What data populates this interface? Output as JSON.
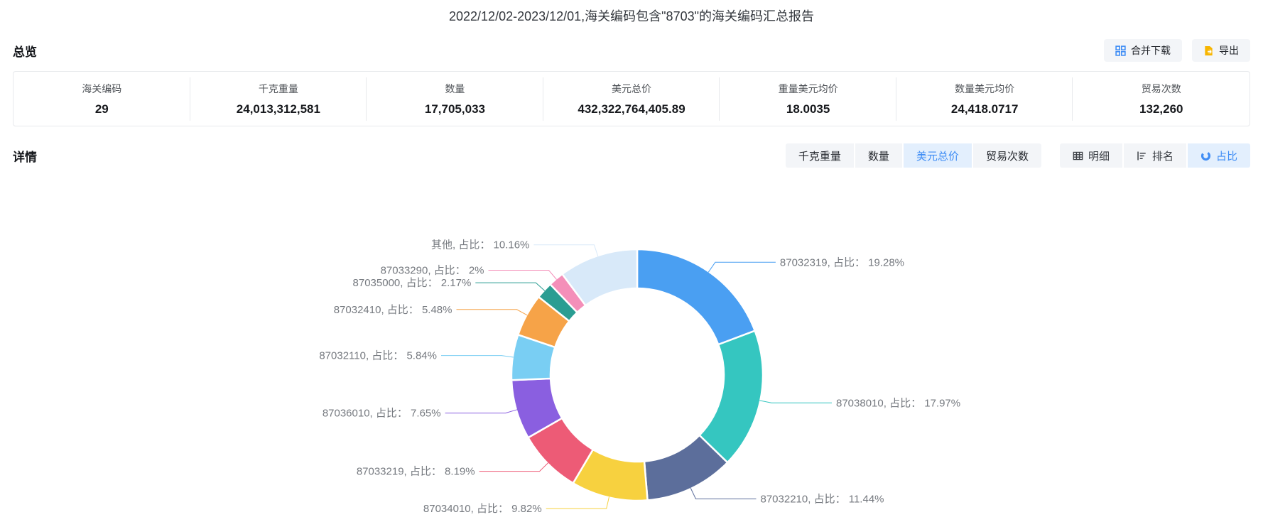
{
  "title": "2022/12/02-2023/12/01,海关编码包含\"8703\"的海关编码汇总报告",
  "overview": {
    "heading": "总览",
    "actions": [
      {
        "label": "合并下载",
        "icon": "merge-download-icon"
      },
      {
        "label": "导出",
        "icon": "export-icon"
      }
    ],
    "stats": [
      {
        "label": "海关编码",
        "value": "29"
      },
      {
        "label": "千克重量",
        "value": "24,013,312,581"
      },
      {
        "label": "数量",
        "value": "17,705,033"
      },
      {
        "label": "美元总价",
        "value": "432,322,764,405.89"
      },
      {
        "label": "重量美元均价",
        "value": "18.0035"
      },
      {
        "label": "数量美元均价",
        "value": "24,418.0717"
      },
      {
        "label": "贸易次数",
        "value": "132,260"
      }
    ]
  },
  "detail": {
    "heading": "详情",
    "metric_tabs": [
      {
        "label": "千克重量",
        "active": false
      },
      {
        "label": "数量",
        "active": false
      },
      {
        "label": "美元总价",
        "active": true
      },
      {
        "label": "贸易次数",
        "active": false
      }
    ],
    "view_tabs": [
      {
        "label": "明细",
        "icon": "table-icon",
        "active": false
      },
      {
        "label": "排名",
        "icon": "rank-icon",
        "active": false
      },
      {
        "label": "占比",
        "icon": "pie-icon",
        "active": true
      }
    ]
  },
  "colors": {
    "accent_blue": "#3f8df5",
    "active_tab_bg": "#e3effd",
    "tab_bg": "#f3f5f8",
    "export_icon_orange": "#f7b500",
    "chart_label_gray": "#75797f"
  },
  "chart_data": {
    "type": "pie",
    "subtype": "donut",
    "start_angle": "top",
    "direction": "clockwise",
    "labels": "outside-with-leader-lines",
    "label_template": "{name}, 占比： {percent_display}",
    "slices": [
      {
        "name": "87032319",
        "percent": 19.28,
        "percent_display": "19.28%",
        "color": "#4a9ff2"
      },
      {
        "name": "87038010",
        "percent": 17.97,
        "percent_display": "17.97%",
        "color": "#35c6c0"
      },
      {
        "name": "87032210",
        "percent": 11.44,
        "percent_display": "11.44%",
        "color": "#5c6e9b"
      },
      {
        "name": "87034010",
        "percent": 9.82,
        "percent_display": "9.82%",
        "color": "#f7d13f"
      },
      {
        "name": "87033219",
        "percent": 8.19,
        "percent_display": "8.19%",
        "color": "#ed5b76"
      },
      {
        "name": "87036010",
        "percent": 7.65,
        "percent_display": "7.65%",
        "color": "#8a5fe0"
      },
      {
        "name": "87032110",
        "percent": 5.84,
        "percent_display": "5.84%",
        "color": "#79cef3"
      },
      {
        "name": "87032410",
        "percent": 5.48,
        "percent_display": "5.48%",
        "color": "#f6a348"
      },
      {
        "name": "87035000",
        "percent": 2.17,
        "percent_display": "2.17%",
        "color": "#2a9d92"
      },
      {
        "name": "87033290",
        "percent": 2,
        "percent_display": "2%",
        "color": "#f48fb9"
      },
      {
        "name": "其他",
        "percent": 10.16,
        "percent_display": "10.16%",
        "color": "#d8e9f9"
      }
    ]
  }
}
